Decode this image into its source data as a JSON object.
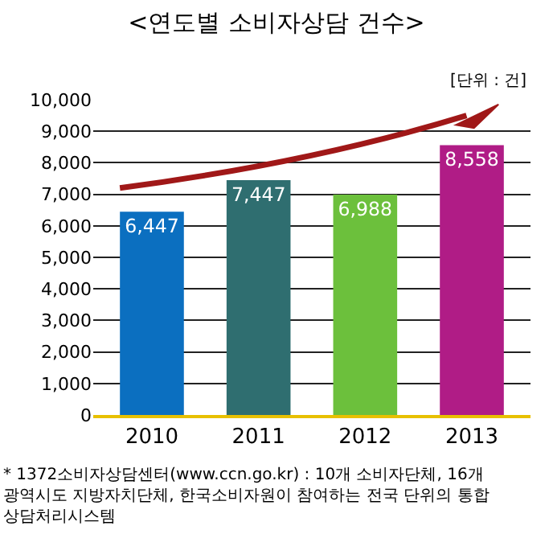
{
  "chart_data": {
    "type": "bar",
    "title": "<연도별 소비자상담 건수>",
    "categories": [
      "2010",
      "2011",
      "2012",
      "2013"
    ],
    "values": [
      6447,
      7447,
      6988,
      8558
    ],
    "colors": [
      "#0b6fc0",
      "#2f6e70",
      "#6cc03c",
      "#b01c86"
    ],
    "value_labels": [
      "6,447",
      "7,447",
      "6,988",
      "8,558"
    ],
    "ylim": [
      0,
      10000
    ],
    "yticks": [
      {
        "value": 0,
        "label": "0"
      },
      {
        "value": 1000,
        "label": "1,000"
      },
      {
        "value": 2000,
        "label": "2,000"
      },
      {
        "value": 3000,
        "label": "3,000"
      },
      {
        "value": 4000,
        "label": "4,000"
      },
      {
        "value": 5000,
        "label": "5,000"
      },
      {
        "value": 6000,
        "label": "6,000"
      },
      {
        "value": 7000,
        "label": "7,000"
      },
      {
        "value": 8000,
        "label": "8,000"
      },
      {
        "value": 9000,
        "label": "9,000"
      },
      {
        "value": 10000,
        "label": "10,000"
      }
    ],
    "grid": "y",
    "annotations": [
      "[단위 : 건]",
      "* 1372소비자상담센터(www.ccn.go.kr) : 10개 소비자단체, 16개 광역시도 지방자치단체, 한국소비자원이 참여하는 전국 단위의 통합 상담처리시스템"
    ]
  }
}
